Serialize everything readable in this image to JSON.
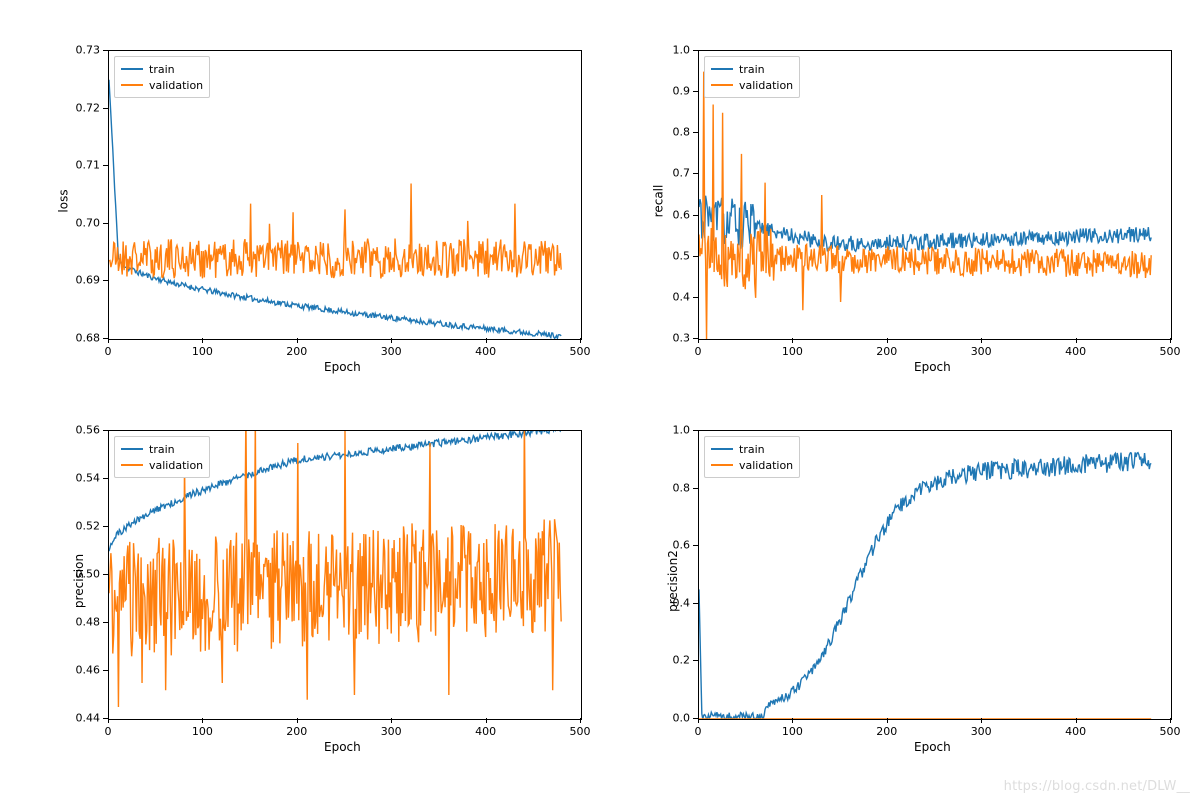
{
  "watermark": "https://blog.csdn.net/DLW__",
  "colors": {
    "train": "#1f77b4",
    "validation": "#ff7f0e",
    "axis": "#000000",
    "legend_border": "#cccccc",
    "background": "#ffffff"
  },
  "line_width": 1.4,
  "font_family": "DejaVu Sans",
  "tick_fontsize": 11,
  "label_fontsize": 12,
  "n_points": 480,
  "panels": [
    {
      "id": "loss",
      "type": "line",
      "ylabel": "loss",
      "xlabel": "Epoch",
      "xlim": [
        0,
        500
      ],
      "ylim": [
        0.68,
        0.73
      ],
      "xticks": [
        0,
        100,
        200,
        300,
        400,
        500
      ],
      "yticks": [
        0.68,
        0.69,
        0.7,
        0.71,
        0.72,
        0.73
      ],
      "ytick_labels": [
        "0.68",
        "0.69",
        "0.70",
        "0.71",
        "0.72",
        "0.73"
      ],
      "legend": {
        "entries": [
          "train",
          "validation"
        ],
        "pos": "upper-left"
      },
      "series": {
        "train": {
          "start": 0.725,
          "initial_drop_to": 0.694,
          "drop_epochs": 10,
          "end": 0.6805,
          "noise_amp": 0.0005,
          "seed": 11
        },
        "validation": {
          "base": 0.694,
          "noise_amp": 0.0035,
          "spikes": [
            [
              150,
              0.7035
            ],
            [
              170,
              0.7
            ],
            [
              195,
              0.702
            ],
            [
              250,
              0.7025
            ],
            [
              320,
              0.707
            ],
            [
              380,
              0.7005
            ],
            [
              430,
              0.7035
            ]
          ],
          "seed": 21
        }
      }
    },
    {
      "id": "recall",
      "type": "line",
      "ylabel": "recall",
      "xlabel": "Epoch",
      "xlim": [
        0,
        500
      ],
      "ylim": [
        0.3,
        1.0
      ],
      "xticks": [
        0,
        100,
        200,
        300,
        400,
        500
      ],
      "yticks": [
        0.3,
        0.4,
        0.5,
        0.6,
        0.7,
        0.8,
        0.9,
        1.0
      ],
      "ytick_labels": [
        "0.3",
        "0.4",
        "0.5",
        "0.6",
        "0.7",
        "0.8",
        "0.9",
        "1.0"
      ],
      "legend": {
        "entries": [
          "train",
          "validation"
        ],
        "pos": "upper-left"
      },
      "series": {
        "train": {
          "start": 0.6,
          "mid": 0.53,
          "end": 0.555,
          "noise_amp": 0.02,
          "early_big_noise_until": 60,
          "early_big_noise_amp": 0.06,
          "seed": 31
        },
        "validation": {
          "base": 0.5,
          "end": 0.48,
          "noise_amp": 0.035,
          "early_spikes": [
            [
              5,
              0.95
            ],
            [
              8,
              0.3
            ],
            [
              15,
              0.87
            ],
            [
              25,
              0.85
            ],
            [
              45,
              0.75
            ],
            [
              70,
              0.68
            ],
            [
              130,
              0.65
            ]
          ],
          "dips": [
            [
              60,
              0.4
            ],
            [
              110,
              0.37
            ],
            [
              150,
              0.39
            ]
          ],
          "seed": 41
        }
      }
    },
    {
      "id": "precision",
      "type": "line",
      "ylabel": "precision",
      "xlabel": "Epoch",
      "xlim": [
        0,
        500
      ],
      "ylim": [
        0.44,
        0.56
      ],
      "xticks": [
        0,
        100,
        200,
        300,
        400,
        500
      ],
      "yticks": [
        0.44,
        0.46,
        0.48,
        0.5,
        0.52,
        0.54,
        0.56
      ],
      "ytick_labels": [
        "0.44",
        "0.46",
        "0.48",
        "0.50",
        "0.52",
        "0.54",
        "0.56"
      ],
      "legend": {
        "entries": [
          "train",
          "validation"
        ],
        "pos": "upper-left"
      },
      "series": {
        "train": {
          "start": 0.511,
          "mid": 0.548,
          "mid_epoch": 200,
          "end": 0.561,
          "noise_amp": 0.0015,
          "seed": 51
        },
        "validation": {
          "base": 0.49,
          "end": 0.5,
          "noise_amp": 0.025,
          "spikes": [
            [
              80,
              0.548
            ],
            [
              145,
              0.568
            ],
            [
              155,
              0.565
            ],
            [
              200,
              0.555
            ],
            [
              250,
              0.56
            ],
            [
              340,
              0.555
            ],
            [
              440,
              0.568
            ]
          ],
          "dips": [
            [
              10,
              0.445
            ],
            [
              35,
              0.455
            ],
            [
              60,
              0.452
            ],
            [
              120,
              0.455
            ],
            [
              210,
              0.448
            ],
            [
              260,
              0.45
            ],
            [
              360,
              0.45
            ],
            [
              470,
              0.452
            ]
          ],
          "seed": 61
        }
      }
    },
    {
      "id": "precision2",
      "type": "line",
      "ylabel": "precision2",
      "xlabel": "Epoch",
      "xlim": [
        0,
        500
      ],
      "ylim": [
        0.0,
        1.0
      ],
      "xticks": [
        0,
        100,
        200,
        300,
        400,
        500
      ],
      "yticks": [
        0.0,
        0.2,
        0.4,
        0.6,
        0.8,
        1.0
      ],
      "ytick_labels": [
        "0.0",
        "0.2",
        "0.4",
        "0.6",
        "0.8",
        "1.0"
      ],
      "legend": {
        "entries": [
          "train",
          "validation"
        ],
        "pos": "upper-left"
      },
      "series": {
        "train": {
          "initial_spike": 0.45,
          "drop_to": 0.01,
          "flat_until": 70,
          "rise_to": 0.86,
          "rise_end": 300,
          "end": 0.9,
          "noise_amp_early": 0.015,
          "noise_amp_late": 0.035,
          "seed": 71
        },
        "validation": {
          "constant": 0.0,
          "seed": 81
        }
      }
    }
  ]
}
